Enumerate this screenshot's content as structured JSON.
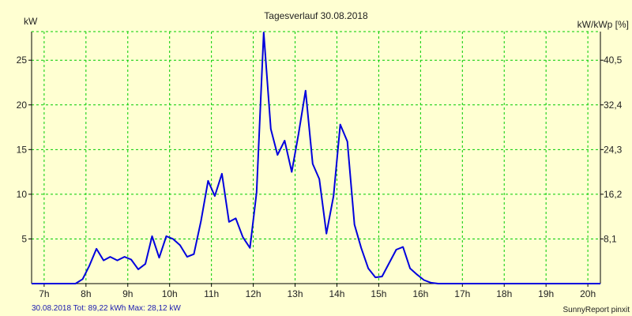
{
  "chart_data": {
    "type": "line",
    "title": "Tagesverlauf 30.08.2018",
    "ylabel_left": "kW",
    "ylabel_right": "kW/kWp [%]",
    "footer_left": "30.08.2018 Tot: 89,22 kWh Max: 28,12 kW",
    "footer_right": "SunnyReport pinxit",
    "x_ticks": [
      "7h",
      "8h",
      "9h",
      "10h",
      "11h",
      "12h",
      "13h",
      "14h",
      "15h",
      "16h",
      "17h",
      "18h",
      "19h",
      "20h"
    ],
    "x_tick_values": [
      7,
      8,
      9,
      10,
      11,
      12,
      13,
      14,
      15,
      16,
      17,
      18,
      19,
      20
    ],
    "y_ticks_left": [
      "5",
      "10",
      "15",
      "20",
      "25"
    ],
    "y_tick_values_left": [
      5,
      10,
      15,
      20,
      25
    ],
    "y_ticks_right": [
      "8,1",
      "16,2",
      "24,3",
      "32,4",
      "40,5"
    ],
    "xlim": [
      6.7,
      20.3
    ],
    "ylim": [
      0,
      28.2
    ],
    "grid": true,
    "line_color": "#0000dd",
    "grid_color": "#00cc00",
    "series": [
      {
        "x": [
          6.7,
          7.0,
          7.25,
          7.5,
          7.75,
          7.92,
          8.08,
          8.25,
          8.42,
          8.58,
          8.75,
          8.92,
          9.08,
          9.25,
          9.42,
          9.58,
          9.75,
          9.92,
          10.08,
          10.25,
          10.42,
          10.58,
          10.75,
          10.92,
          11.08,
          11.25,
          11.42,
          11.58,
          11.75,
          11.92,
          12.08,
          12.25,
          12.42,
          12.58,
          12.75,
          12.92,
          13.08,
          13.25,
          13.42,
          13.58,
          13.75,
          13.92,
          14.08,
          14.25,
          14.42,
          14.58,
          14.75,
          14.92,
          15.08,
          15.25,
          15.42,
          15.58,
          15.75,
          15.92,
          16.08,
          16.25,
          16.42,
          16.58,
          16.75,
          16.92,
          17.08,
          17.25,
          17.42,
          17.58,
          17.75,
          17.92,
          18.08,
          18.25,
          18.42,
          18.58,
          18.75,
          18.92,
          19.08,
          19.25,
          19.42,
          19.58,
          19.75,
          19.92,
          20.08,
          20.3
        ],
        "y": [
          0,
          0,
          0,
          0,
          0,
          0.5,
          2.0,
          3.9,
          2.6,
          3.0,
          2.6,
          3.0,
          2.7,
          1.6,
          2.2,
          5.3,
          2.9,
          5.3,
          5.0,
          4.3,
          3.0,
          3.3,
          7.0,
          11.5,
          9.8,
          12.3,
          6.9,
          7.3,
          5.2,
          4.0,
          10.2,
          28.1,
          17.3,
          14.4,
          16.0,
          12.5,
          16.7,
          21.6,
          13.4,
          11.7,
          5.6,
          9.8,
          17.8,
          15.9,
          6.6,
          4.0,
          1.7,
          0.7,
          0.8,
          2.3,
          3.8,
          4.1,
          1.7,
          1.0,
          0.4,
          0.1,
          0,
          0,
          0,
          0,
          0,
          0,
          0,
          0,
          0,
          0,
          0,
          0,
          0,
          0,
          0,
          0,
          0,
          0,
          0,
          0,
          0,
          0,
          0,
          0
        ]
      }
    ]
  }
}
